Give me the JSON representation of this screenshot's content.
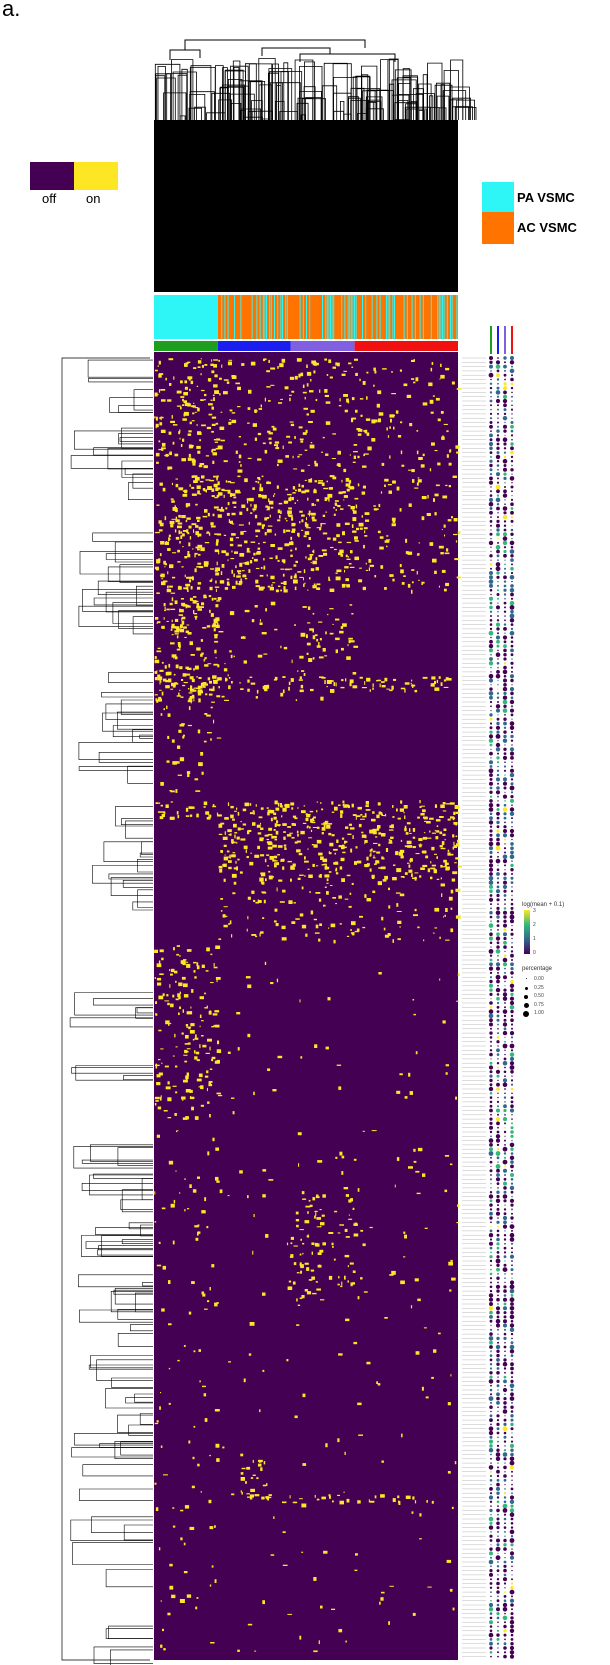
{
  "figure": {
    "panel_label": "a.",
    "colors": {
      "off": "#440154",
      "on": "#fde725",
      "pa_vsmc": "#2ff6f6",
      "ac_vsmc": "#ff7300",
      "cluster_green": "#1e9e1e",
      "cluster_blue": "#1a1ff0",
      "cluster_purple": "#8060e0",
      "cluster_red": "#f01010"
    }
  },
  "chart_data": {
    "type": "heatmap",
    "title": "",
    "binary_legend": {
      "off_label": "off",
      "on_label": "on"
    },
    "annotation_legend": [
      {
        "name": "PA VSMC",
        "color": "#2ff6f6"
      },
      {
        "name": "AC VSMC",
        "color": "#ff7300"
      }
    ],
    "values": [
      "off",
      "on"
    ],
    "cell_clusters": [
      {
        "color": "#1e9e1e",
        "share": 0.21
      },
      {
        "color": "#1a1ff0",
        "share": 0.24
      },
      {
        "color": "#8060e0",
        "share": 0.21
      },
      {
        "color": "#f01010",
        "share": 0.34
      }
    ],
    "dotplot_legend": {
      "color_title": "log(mean + 0.1)",
      "color_ticks": [
        "3",
        "2",
        "1",
        "0"
      ],
      "size_title": "percentage",
      "size_ticks": [
        "0.00",
        "0.25",
        "0.50",
        "0.75",
        "1.00"
      ]
    }
  }
}
